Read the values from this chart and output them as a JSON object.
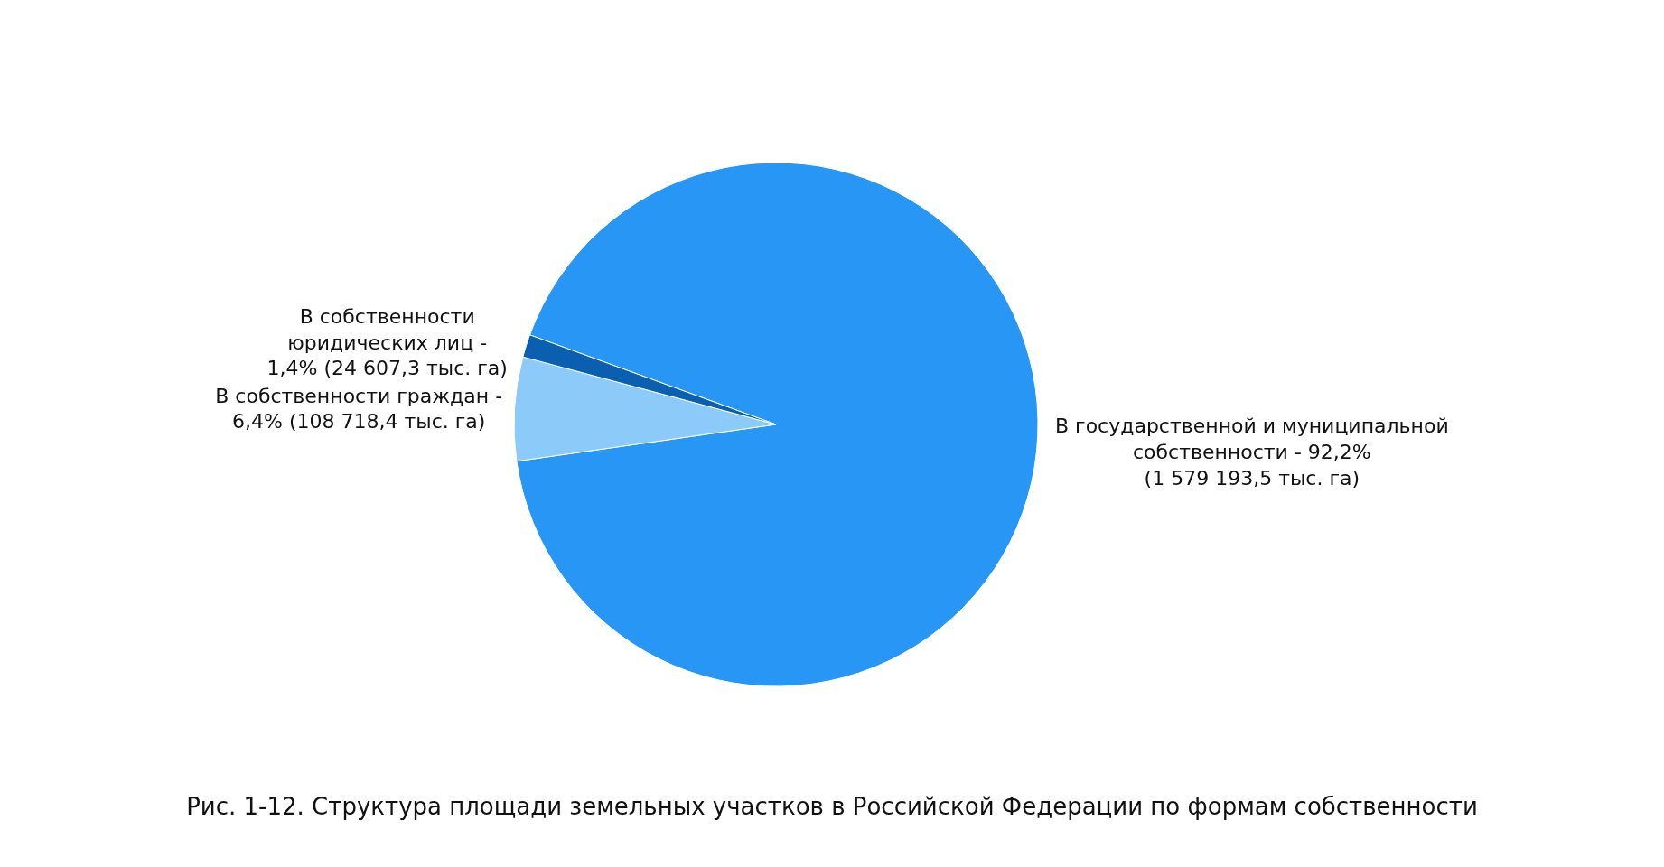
{
  "chart_data": {
    "type": "pie",
    "title": "Рис. 1-12. Структура площади земельных участков в Российской Федерации по формам собственности",
    "categories": [
      "В государственной и муниципальной\nсобственности - 92,2%\n(1 579 193,5 тыс. га)",
      "В собственности граждан -\n6,4% (108 718,4 тыс. га)",
      "В собственности\nюридических лиц -\n1,4% (24 607,3 тыс. га)"
    ],
    "values": [
      92.2,
      6.4,
      1.4
    ],
    "colors": [
      "#2896f5",
      "#8ccaf9",
      "#0a5fb0"
    ],
    "legend": false
  }
}
